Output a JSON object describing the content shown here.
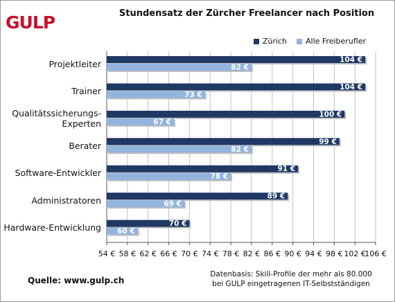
{
  "logo": "GULP",
  "chart_data": {
    "type": "bar",
    "orientation": "horizontal",
    "title": "Stundensatz der Zürcher Freelancer nach Position",
    "categories": [
      "Projektleiter",
      "Trainer",
      "Qualitätssicherungs-Experten",
      "Berater",
      "Software-Entwickler",
      "Administratoren",
      "Hardware-Entwicklung"
    ],
    "category_lines": [
      [
        "Projektleiter"
      ],
      [
        "Trainer"
      ],
      [
        "Qualitätssicherungs-",
        "Experten"
      ],
      [
        "Berater"
      ],
      [
        "Software-Entwickler"
      ],
      [
        "Administratoren"
      ],
      [
        "Hardware-Entwicklung"
      ]
    ],
    "series": [
      {
        "name": "Zürich",
        "color": "#1f3864",
        "values": [
          104,
          104,
          100,
          99,
          91,
          89,
          70
        ]
      },
      {
        "name": "Alle Freiberufler",
        "color": "#92b4df",
        "values": [
          82,
          73,
          67,
          82,
          78,
          69,
          60
        ]
      }
    ],
    "value_labels": {
      "Zürich": [
        "104 €",
        "104 €",
        "100 €",
        "99 €",
        "91 €",
        "89 €",
        "70 €"
      ],
      "Alle Freiberufler": [
        "82 €",
        "73 €",
        "67 €",
        "82 €",
        "78 €",
        "69 €",
        "60 €"
      ]
    },
    "xlim": [
      54,
      106
    ],
    "xticks": [
      54,
      58,
      62,
      66,
      70,
      74,
      78,
      82,
      86,
      90,
      94,
      98,
      102,
      106
    ],
    "xtick_labels": [
      "54 €",
      "58 €",
      "62 €",
      "66 €",
      "70 €",
      "74 €",
      "78 €",
      "82 €",
      "86 €",
      "90 €",
      "94 €",
      "98 €",
      "102 €",
      "106 €"
    ],
    "grid": true,
    "legend_position": "top-right",
    "grid_color": "#c0c0c0"
  },
  "source": "Quelle: www.gulp.ch",
  "footnote": {
    "line1": "Datenbasis: Skill-Profile der mehr als 80.000",
    "line2": "bei GULP eingetragenen IT-Selbstständigen"
  }
}
